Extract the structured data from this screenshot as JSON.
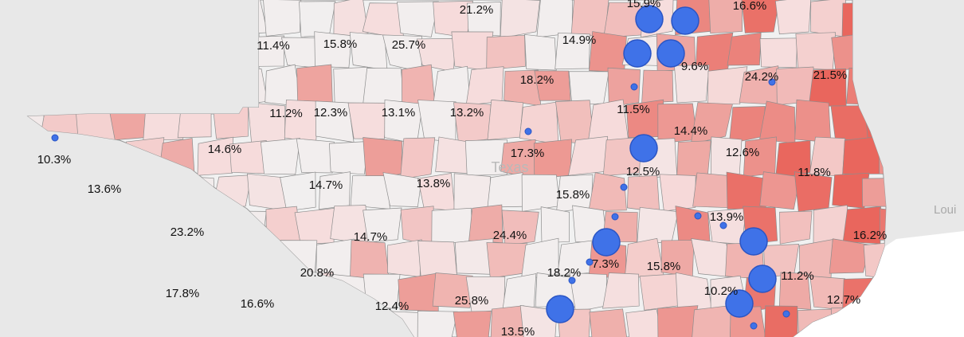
{
  "map": {
    "state_label": "Texas",
    "neighbor_label": "Loui",
    "colors": {
      "background": "#e8e8e8",
      "water": "#ffffff",
      "light_county": "#f1f1f1",
      "low": "#f6dcdc",
      "mid": "#eeaaa6",
      "high": "#e9665d",
      "marker": "#3f72e8",
      "marker_stroke": "#2a55c4"
    },
    "value_labels": [
      "21.2%",
      "15.9%",
      "16.6%",
      "11.4%",
      "15.8%",
      "25.7%",
      "14.9%",
      "9.6%",
      "18.2%",
      "24.2%",
      "21.5%",
      "11.2%",
      "12.3%",
      "13.1%",
      "13.2%",
      "11.5%",
      "14.4%",
      "10.3%",
      "14.6%",
      "17.3%",
      "12.6%",
      "12.5%",
      "11.8%",
      "13.6%",
      "14.7%",
      "13.8%",
      "15.8%",
      "23.2%",
      "14.7%",
      "24.4%",
      "13.9%",
      "16.2%",
      "7.3%",
      "20.8%",
      "18.2%",
      "15.8%",
      "11.2%",
      "17.8%",
      "16.6%",
      "12.4%",
      "25.8%",
      "10.2%",
      "12.7%",
      "13.5%"
    ],
    "markers": [
      {
        "size": "large"
      },
      {
        "size": "large"
      },
      {
        "size": "large"
      },
      {
        "size": "large"
      },
      {
        "size": "large"
      },
      {
        "size": "large"
      },
      {
        "size": "large"
      },
      {
        "size": "large"
      },
      {
        "size": "large"
      },
      {
        "size": "large"
      },
      {
        "size": "small"
      },
      {
        "size": "small"
      },
      {
        "size": "small"
      },
      {
        "size": "small"
      },
      {
        "size": "small"
      },
      {
        "size": "small"
      },
      {
        "size": "small"
      },
      {
        "size": "small"
      },
      {
        "size": "small"
      },
      {
        "size": "small"
      },
      {
        "size": "small"
      },
      {
        "size": "small"
      }
    ]
  }
}
